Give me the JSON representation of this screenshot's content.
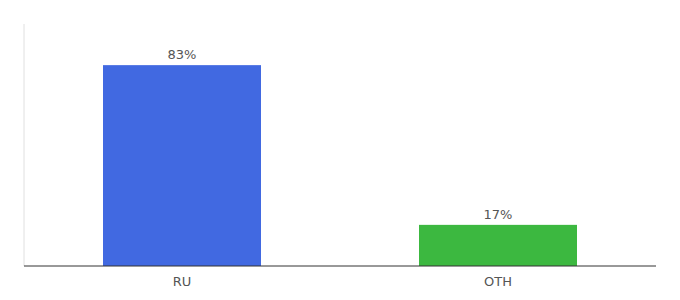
{
  "chart_data": {
    "type": "bar",
    "categories": [
      "RU",
      "OTH"
    ],
    "values": [
      83,
      17
    ],
    "value_labels": [
      "83%",
      "17%"
    ],
    "colors": [
      "#4169E1",
      "#3CB840"
    ],
    "ylim": [
      0,
      100
    ],
    "data_labels": true,
    "tick_labels": "x",
    "grid": false
  }
}
